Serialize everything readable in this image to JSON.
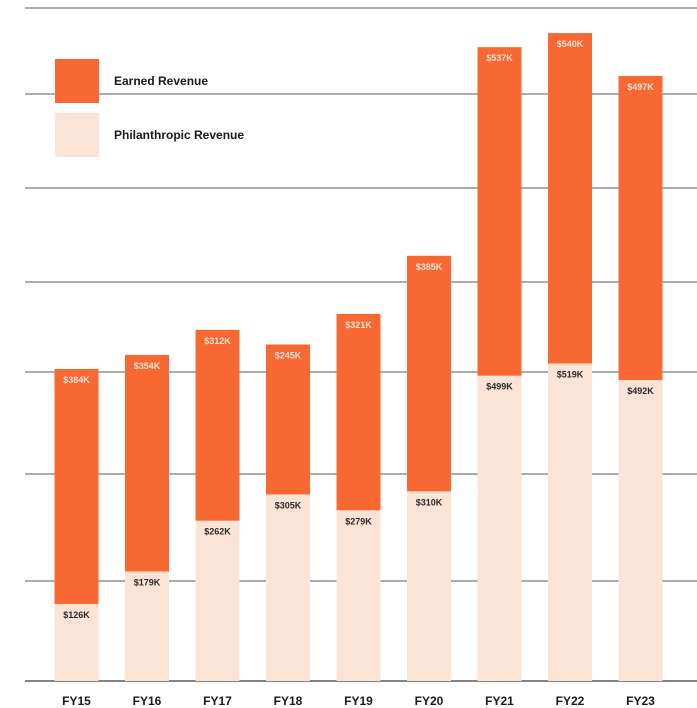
{
  "chart_data": {
    "type": "bar",
    "stacked": true,
    "categories": [
      "FY15",
      "FY16",
      "FY17",
      "FY18",
      "FY19",
      "FY20",
      "FY21",
      "FY22",
      "FY23"
    ],
    "series": [
      {
        "name": "Philanthropic Revenue",
        "values": [
          126,
          179,
          262,
          305,
          279,
          310,
          499,
          519,
          492
        ],
        "labels": [
          "$126K",
          "$179K",
          "$262K",
          "$305K",
          "$279K",
          "$310K",
          "$499K",
          "$519K",
          "$492K"
        ],
        "color": "#fbe3d5",
        "label_color": "#2a2a2a"
      },
      {
        "name": "Earned Revenue",
        "values": [
          384,
          354,
          312,
          245,
          321,
          385,
          537,
          540,
          497
        ],
        "labels": [
          "$384K",
          "$354K",
          "$312K",
          "$245K",
          "$321K",
          "$385K",
          "$537K",
          "$540K",
          "$497K"
        ],
        "color": "#f86833",
        "label_color": "#fde2d3"
      }
    ],
    "legend": {
      "position": "top-left",
      "entries": [
        "Earned Revenue",
        "Philanthropic Revenue"
      ]
    },
    "ylim": [
      0,
      1100
    ],
    "grid": true,
    "gridline_color": "#5a5a5a",
    "title": "",
    "xlabel": "",
    "ylabel": ""
  }
}
